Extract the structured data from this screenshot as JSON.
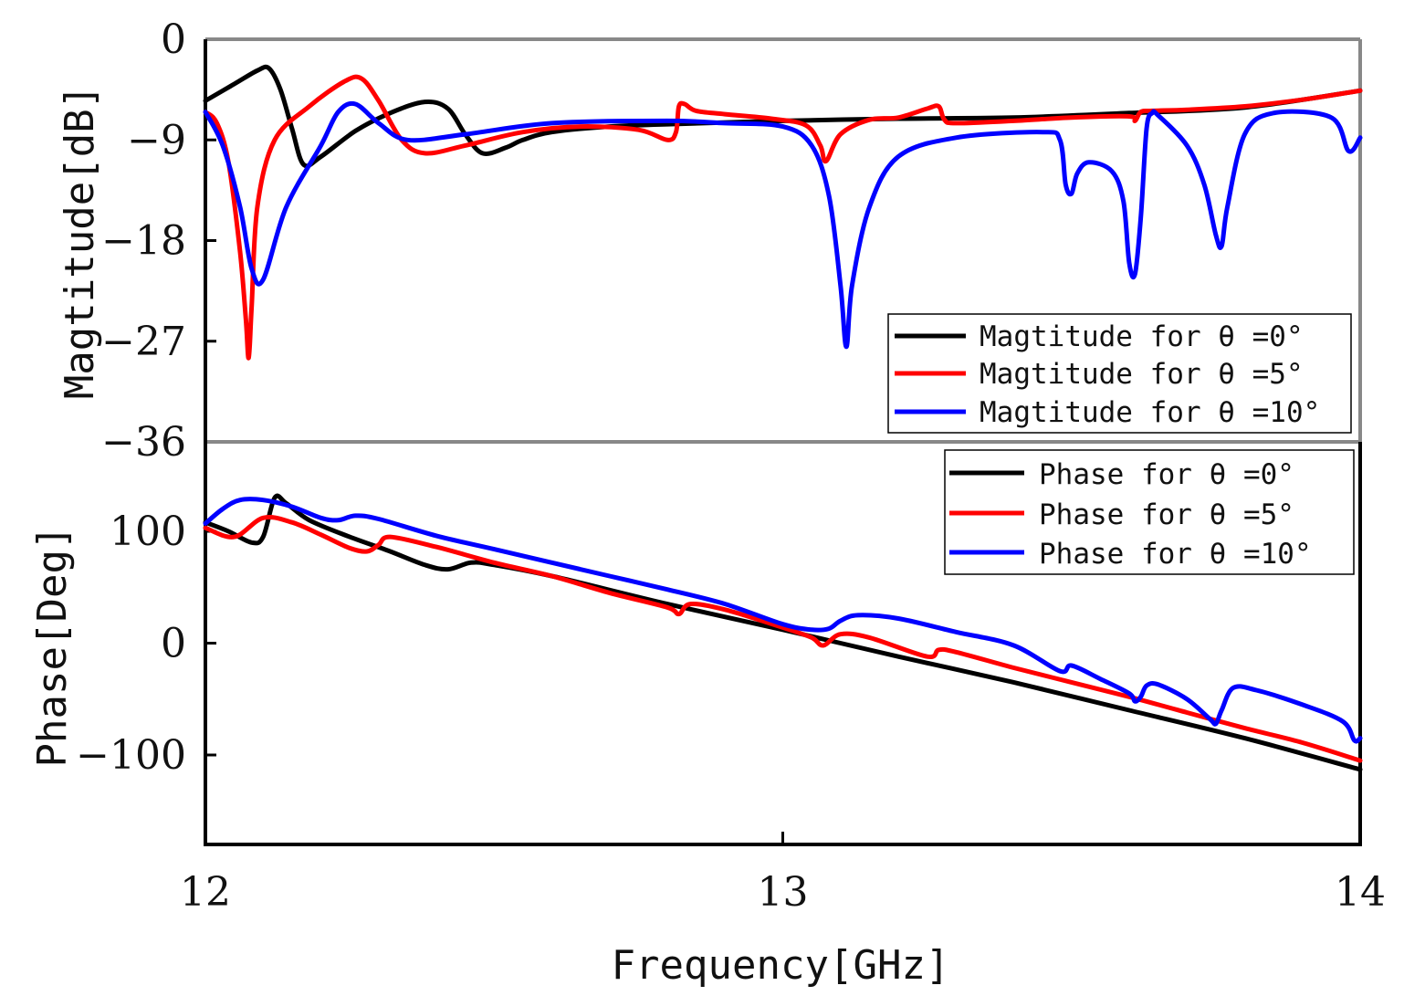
{
  "chart_data": [
    {
      "type": "line",
      "panel": "top",
      "ylabel": "Magtitude[dB]",
      "xlabel": "Frequency[GHz]",
      "xlim": [
        12,
        14
      ],
      "ylim": [
        -36,
        0
      ],
      "yticks": [
        0,
        -9,
        -18,
        -27,
        -36
      ],
      "ytick_labels": [
        "0",
        "−9",
        "−18",
        "−27",
        "−36"
      ],
      "legend_position": "bottom-right",
      "series": [
        {
          "name": "Magtitude for θ=0°",
          "legend_label": "Magtitude for  θ =0°",
          "color": "#000000",
          "x": [
            12.0,
            12.05,
            12.09,
            12.11,
            12.13,
            12.15,
            12.17,
            12.2,
            12.26,
            12.32,
            12.38,
            12.42,
            12.45,
            12.48,
            12.52,
            12.55,
            12.6,
            12.7,
            12.8,
            13.0,
            13.2,
            13.4,
            13.6,
            13.8,
            14.0
          ],
          "y": [
            -5.5,
            -4.0,
            -2.8,
            -2.6,
            -4.5,
            -8.0,
            -11.2,
            -10.5,
            -8.2,
            -6.6,
            -5.6,
            -6.2,
            -8.5,
            -10.2,
            -9.7,
            -9.0,
            -8.3,
            -7.8,
            -7.6,
            -7.3,
            -7.1,
            -7.0,
            -6.6,
            -6.1,
            -4.6
          ]
        },
        {
          "name": "Magtitude for θ=5°",
          "legend_label": "Magtitude for  θ =5°",
          "color": "#ff0000",
          "x": [
            12.0,
            12.02,
            12.04,
            12.06,
            12.07,
            12.075,
            12.08,
            12.09,
            12.12,
            12.18,
            12.24,
            12.27,
            12.3,
            12.34,
            12.38,
            12.45,
            12.55,
            12.65,
            12.75,
            12.8,
            12.815,
            12.82,
            12.83,
            12.85,
            12.9,
            12.98,
            13.04,
            13.065,
            13.075,
            13.1,
            13.15,
            13.2,
            13.25,
            13.27,
            13.28,
            13.3,
            13.4,
            13.5,
            13.6,
            13.61,
            13.62,
            13.64,
            13.7,
            13.8,
            13.9,
            14.0
          ],
          "y": [
            -6.5,
            -7.5,
            -11.0,
            -19.0,
            -25.0,
            -28.5,
            -24.0,
            -15.0,
            -9.0,
            -6.0,
            -3.8,
            -3.5,
            -5.5,
            -9.0,
            -10.2,
            -9.5,
            -8.3,
            -7.8,
            -8.1,
            -9.0,
            -8.3,
            -6.0,
            -5.8,
            -6.4,
            -6.7,
            -7.1,
            -7.7,
            -9.5,
            -10.9,
            -8.5,
            -7.2,
            -7.0,
            -6.2,
            -6.0,
            -7.2,
            -7.5,
            -7.3,
            -7.0,
            -6.9,
            -7.3,
            -6.5,
            -6.4,
            -6.3,
            -6.0,
            -5.4,
            -4.6
          ]
        },
        {
          "name": "Magtitude for θ=10°",
          "legend_label": "Magtitude for  θ =10°",
          "color": "#0000ff",
          "x": [
            12.0,
            12.03,
            12.06,
            12.08,
            12.1,
            12.14,
            12.2,
            12.23,
            12.26,
            12.3,
            12.35,
            12.45,
            12.6,
            12.8,
            12.9,
            13.0,
            13.05,
            13.08,
            13.1,
            13.11,
            13.12,
            13.15,
            13.2,
            13.3,
            13.45,
            13.48,
            13.49,
            13.5,
            13.51,
            13.53,
            13.57,
            13.59,
            13.6,
            13.61,
            13.62,
            13.63,
            13.64,
            13.65,
            13.7,
            13.73,
            13.75,
            13.76,
            13.77,
            13.8,
            13.85,
            13.95,
            13.98,
            14.0
          ],
          "y": [
            -6.5,
            -9.5,
            -15.0,
            -20.5,
            -21.5,
            -15.0,
            -9.5,
            -6.5,
            -5.8,
            -7.5,
            -9.0,
            -8.5,
            -7.5,
            -7.3,
            -7.5,
            -7.8,
            -9.5,
            -14.0,
            -22.0,
            -27.5,
            -22.0,
            -15.0,
            -10.5,
            -8.8,
            -8.3,
            -9.0,
            -13.0,
            -13.8,
            -12.0,
            -11.0,
            -11.8,
            -14.5,
            -20.0,
            -21.0,
            -16.0,
            -8.0,
            -6.6,
            -6.8,
            -9.5,
            -13.0,
            -17.5,
            -18.5,
            -15.0,
            -8.5,
            -6.6,
            -7.0,
            -10.0,
            -8.8
          ]
        }
      ]
    },
    {
      "type": "line",
      "panel": "bottom",
      "ylabel": "Phase[Deg]",
      "xlabel": "Frequency[GHz]",
      "xlim": [
        12,
        14
      ],
      "ylim": [
        -180,
        180
      ],
      "yticks": [
        100,
        0,
        -100
      ],
      "ytick_labels": [
        "100",
        "0",
        "−100"
      ],
      "xticks": [
        12,
        13,
        14
      ],
      "xtick_labels": [
        "12",
        "13",
        "14"
      ],
      "legend_position": "top-right",
      "series": [
        {
          "name": "Phase for θ=0°",
          "legend_label": "Phase for  θ =0°",
          "color": "#000000",
          "x": [
            12.0,
            12.04,
            12.08,
            12.1,
            12.12,
            12.14,
            12.18,
            12.25,
            12.32,
            12.38,
            12.42,
            12.46,
            12.5,
            12.6,
            12.8,
            13.0,
            13.2,
            13.4,
            13.6,
            13.8,
            14.0
          ],
          "y": [
            108,
            100,
            90,
            95,
            130,
            125,
            110,
            95,
            82,
            70,
            66,
            72,
            70,
            60,
            35,
            12,
            -12,
            -35,
            -60,
            -85,
            -113
          ]
        },
        {
          "name": "Phase for θ=5°",
          "legend_label": "Phase for  θ =5°",
          "color": "#ff0000",
          "x": [
            12.0,
            12.05,
            12.1,
            12.15,
            12.2,
            12.25,
            12.28,
            12.3,
            12.32,
            12.4,
            12.5,
            12.6,
            12.7,
            12.8,
            12.82,
            12.84,
            12.9,
            13.0,
            13.05,
            13.07,
            13.1,
            13.15,
            13.25,
            13.27,
            13.3,
            13.4,
            13.5,
            13.6,
            13.7,
            13.8,
            13.9,
            14.0
          ],
          "y": [
            103,
            95,
            112,
            108,
            97,
            85,
            82,
            88,
            95,
            86,
            72,
            60,
            45,
            32,
            26,
            35,
            30,
            14,
            5,
            -2,
            8,
            5,
            -12,
            -6,
            -8,
            -22,
            -35,
            -48,
            -62,
            -76,
            -89,
            -105
          ]
        },
        {
          "name": "Phase for θ=10°",
          "legend_label": "Phase for  θ =10°",
          "color": "#0000ff",
          "x": [
            12.0,
            12.03,
            12.06,
            12.1,
            12.15,
            12.2,
            12.23,
            12.26,
            12.3,
            12.4,
            12.5,
            12.6,
            12.7,
            12.8,
            12.9,
            13.0,
            13.05,
            13.08,
            13.1,
            13.13,
            13.2,
            13.3,
            13.4,
            13.48,
            13.5,
            13.55,
            13.6,
            13.61,
            13.62,
            13.63,
            13.65,
            13.7,
            13.74,
            13.75,
            13.76,
            13.78,
            13.82,
            13.9,
            13.97,
            13.99,
            14.0
          ],
          "y": [
            107,
            120,
            128,
            128,
            122,
            112,
            110,
            114,
            111,
            96,
            84,
            72,
            60,
            48,
            35,
            17,
            12,
            13,
            20,
            25,
            22,
            10,
            -2,
            -25,
            -20,
            -32,
            -45,
            -52,
            -48,
            -38,
            -37,
            -50,
            -68,
            -72,
            -60,
            -40,
            -42,
            -55,
            -70,
            -87,
            -85
          ]
        }
      ]
    }
  ]
}
